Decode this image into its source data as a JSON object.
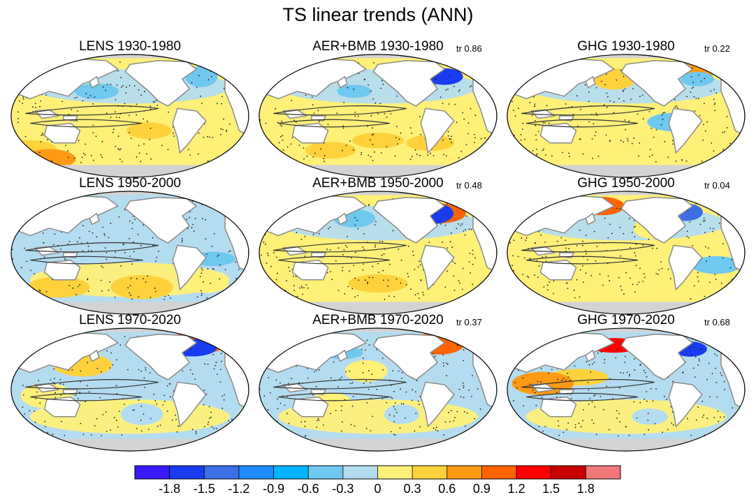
{
  "chart_data": {
    "type": "heatmap",
    "title": "TS linear trends (ANN)",
    "description_note": "3x3 grid of global Robinson-projection maps of annual surface temperature linear trends",
    "colors": {
      "land": "#ffffff",
      "ice": "#d3d3d3",
      "coast": "#8a8a8a",
      "contour": "#333333",
      "stipple": "#1a1a1a"
    },
    "colorbar": {
      "levels": [
        "-1.8",
        "-1.5",
        "-1.2",
        "-0.9",
        "-0.6",
        "-0.3",
        "0",
        "0.3",
        "0.6",
        "0.9",
        "1.2",
        "1.5",
        "1.8"
      ],
      "colors": [
        "#3a1aff",
        "#1a3cf0",
        "#3c6ee6",
        "#1e8cff",
        "#00b4ff",
        "#6ec8f0",
        "#b4dcf0",
        "#fff078",
        "#ffd23c",
        "#ff9a14",
        "#ff6400",
        "#ff0000",
        "#c80000",
        "#f07878"
      ]
    },
    "panels": [
      {
        "title": "LENS 1930-1980",
        "tr": "",
        "base": "warm",
        "warm_anoms": [
          [
            0.08,
            0.78,
            "#ffd23c"
          ],
          [
            0.58,
            0.62,
            "#ffd23c"
          ],
          [
            0.16,
            0.85,
            "#ff9a14"
          ]
        ],
        "cool_anoms": [
          [
            0.8,
            0.18,
            "#6ec8f0"
          ],
          [
            0.36,
            0.3,
            "#6ec8f0"
          ]
        ]
      },
      {
        "title": "AER+BMB 1930-1980",
        "tr": "tr 0.86",
        "base": "warm",
        "warm_anoms": [
          [
            0.5,
            0.7,
            "#ffd23c"
          ],
          [
            0.3,
            0.78,
            "#ffd23c"
          ],
          [
            0.72,
            0.72,
            "#ffd23c"
          ]
        ],
        "cool_anoms": [
          [
            0.4,
            0.3,
            "#6ec8f0"
          ],
          [
            0.78,
            0.18,
            "#1a3cf0"
          ],
          [
            0.2,
            0.18,
            "#6ec8f0"
          ]
        ]
      },
      {
        "title": "GHG 1930-1980",
        "tr": "tr 0.22",
        "base": "warm",
        "warm_anoms": [
          [
            0.45,
            0.2,
            "#ffd23c"
          ],
          [
            0.8,
            0.12,
            "#ff9a14"
          ]
        ],
        "cool_anoms": [
          [
            0.8,
            0.2,
            "#6ec8f0"
          ],
          [
            0.7,
            0.55,
            "#6ec8f0"
          ]
        ]
      },
      {
        "title": "LENS 1950-2000",
        "tr": "",
        "base": "cool",
        "warm_anoms": [
          [
            0.2,
            0.78,
            "#ffd23c"
          ],
          [
            0.55,
            0.78,
            "#ffd23c"
          ],
          [
            0.82,
            0.75,
            "#fff078"
          ]
        ],
        "cool_anoms": [
          [
            0.45,
            0.28,
            "#b4dcf0"
          ],
          [
            0.85,
            0.55,
            "#6ec8f0"
          ]
        ]
      },
      {
        "title": "AER+BMB 1950-2000",
        "tr": "tr 0.48",
        "base": "warm",
        "warm_anoms": [
          [
            0.75,
            0.18,
            "#ff6400"
          ],
          [
            0.5,
            0.75,
            "#ffd23c"
          ]
        ],
        "cool_anoms": [
          [
            0.4,
            0.22,
            "#6ec8f0"
          ],
          [
            0.2,
            0.15,
            "#3c6ee6"
          ],
          [
            0.72,
            0.18,
            "#1a3cf0"
          ]
        ]
      },
      {
        "title": "GHG 1950-2000",
        "tr": "tr 0.04",
        "base": "warm",
        "warm_anoms": [
          [
            0.4,
            0.12,
            "#ff6400"
          ],
          [
            0.62,
            0.3,
            "#fff078"
          ]
        ],
        "cool_anoms": [
          [
            0.75,
            0.17,
            "#3c6ee6"
          ],
          [
            0.88,
            0.6,
            "#6ec8f0"
          ]
        ]
      },
      {
        "title": "LENS 1970-2020",
        "tr": "",
        "base": "cool",
        "warm_anoms": [
          [
            0.3,
            0.3,
            "#ffd23c"
          ],
          [
            0.78,
            0.12,
            "#ff6400"
          ],
          [
            0.15,
            0.55,
            "#fff078"
          ]
        ],
        "cool_anoms": [
          [
            0.55,
            0.7,
            "#b4dcf0"
          ],
          [
            0.76,
            0.16,
            "#1a3cf0"
          ]
        ]
      },
      {
        "title": "AER+BMB 1970-2020",
        "tr": "tr 0.37",
        "base": "cool",
        "warm_anoms": [
          [
            0.76,
            0.12,
            "#ff6400"
          ],
          [
            0.45,
            0.35,
            "#fff078"
          ],
          [
            0.3,
            0.6,
            "#fff078"
          ]
        ],
        "cool_anoms": [
          [
            0.6,
            0.7,
            "#b4dcf0"
          ],
          [
            0.35,
            0.2,
            "#6ec8f0"
          ]
        ]
      },
      {
        "title": "GHG 1970-2020",
        "tr": "tr 0.68",
        "base": "cool",
        "warm_anoms": [
          [
            0.45,
            0.14,
            "#ff0000"
          ],
          [
            0.3,
            0.4,
            "#ffd23c"
          ],
          [
            0.15,
            0.45,
            "#ff9a14"
          ]
        ],
        "cool_anoms": [
          [
            0.77,
            0.17,
            "#1a3cf0"
          ],
          [
            0.6,
            0.72,
            "#b4dcf0"
          ]
        ]
      }
    ]
  }
}
